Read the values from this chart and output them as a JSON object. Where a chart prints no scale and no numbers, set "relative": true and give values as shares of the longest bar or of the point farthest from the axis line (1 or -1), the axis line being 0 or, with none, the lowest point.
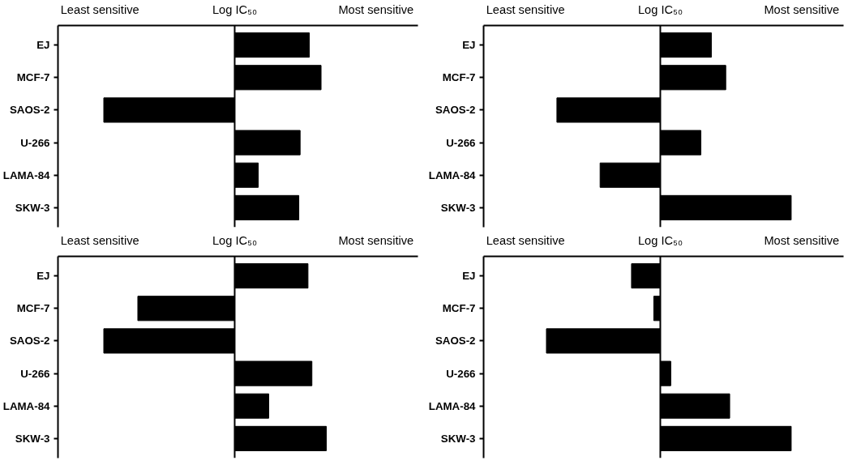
{
  "chart_data": [
    {
      "type": "bar",
      "orientation": "horizontal",
      "relative": true,
      "title": "Log IC₅₀",
      "annotations": [
        "Least sensitive",
        "Most sensitive"
      ],
      "categories": [
        "EJ",
        "MCF-7",
        "SAOS-2",
        "U-266",
        "LAMA-84",
        "SKW-3"
      ],
      "color": "#000000",
      "values": [
        0.57,
        0.66,
        -1,
        0.5,
        0.18,
        0.49
      ],
      "grid": false
    },
    {
      "type": "bar",
      "orientation": "horizontal",
      "relative": true,
      "title": "Log IC₅₀",
      "annotations": [
        "Least sensitive",
        "Most sensitive"
      ],
      "categories": [
        "EJ",
        "MCF-7",
        "SAOS-2",
        "U-266",
        "LAMA-84",
        "SKW-3"
      ],
      "color": "#000000",
      "values": [
        0.39,
        0.5,
        -0.79,
        0.31,
        -0.46,
        1
      ],
      "grid": false
    },
    {
      "type": "bar",
      "orientation": "horizontal",
      "relative": true,
      "title": "Log IC₅₀",
      "annotations": [
        "Least sensitive",
        "Most sensitive"
      ],
      "categories": [
        "EJ",
        "MCF-7",
        "SAOS-2",
        "U-266",
        "LAMA-84",
        "SKW-3"
      ],
      "color": "#000000",
      "values": [
        0.56,
        -0.74,
        -1,
        0.59,
        0.26,
        0.7
      ],
      "grid": false
    },
    {
      "type": "bar",
      "orientation": "horizontal",
      "relative": true,
      "title": "Log IC₅₀",
      "annotations": [
        "Least sensitive",
        "Most sensitive"
      ],
      "categories": [
        "EJ",
        "MCF-7",
        "SAOS-2",
        "U-266",
        "LAMA-84",
        "SKW-3"
      ],
      "color": "#000000",
      "values": [
        -0.22,
        -0.05,
        -0.87,
        0.08,
        0.53,
        1
      ],
      "grid": false
    }
  ]
}
